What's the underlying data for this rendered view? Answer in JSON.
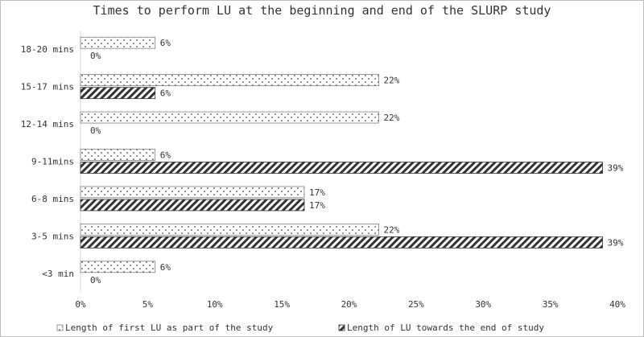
{
  "chart_data": {
    "type": "bar",
    "orientation": "horizontal",
    "title": "Times to perform LU at the beginning and end of the SLURP study",
    "categories": [
      "18-20 mins",
      "15-17 mins",
      "12-14 mins",
      "9-11mins",
      "6-8 mins",
      "3-5 mins",
      "<3 min"
    ],
    "series": [
      {
        "name": "Length of first LU as part of the study",
        "values": [
          6,
          22,
          22,
          6,
          17,
          22,
          6
        ],
        "labels": [
          "6%",
          "22%",
          "22%",
          "6%",
          "17%",
          "22%",
          "6%"
        ],
        "precise": [
          5.56,
          22.22,
          22.22,
          5.56,
          16.67,
          22.22,
          5.56
        ],
        "pattern": "dots"
      },
      {
        "name": "Length of LU towards the end of study",
        "values": [
          0,
          6,
          0,
          39,
          17,
          39,
          0
        ],
        "labels": [
          "0%",
          "6%",
          "0%",
          "39%",
          "17%",
          "39%",
          "0%"
        ],
        "precise": [
          0,
          5.56,
          0,
          38.89,
          16.67,
          38.89,
          0
        ],
        "pattern": "diagonal"
      }
    ],
    "xlim": [
      0,
      40
    ],
    "xticks": [
      "0%",
      "5%",
      "10%",
      "15%",
      "20%",
      "25%",
      "30%",
      "35%",
      "40%"
    ],
    "grid": false,
    "legend_position": "bottom"
  }
}
